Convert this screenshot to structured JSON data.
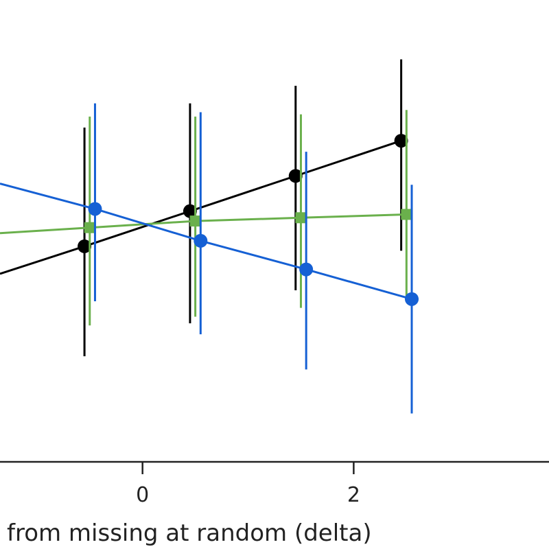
{
  "chart_data": {
    "type": "scatter",
    "title": "",
    "xlabel": "from missing at random (delta)",
    "ylabel": "",
    "xlim": [
      -1.35,
      3.85
    ],
    "ylim": [
      -1.05,
      1.05
    ],
    "x_ticks": [
      0,
      2
    ],
    "x_tick_labels": [
      "0",
      "2"
    ],
    "grid": false,
    "legend": "none",
    "series": [
      {
        "color": "#000000",
        "marker": "circle",
        "x": [
          -0.55,
          0.45,
          1.45,
          2.45
        ],
        "y": [
          -0.07,
          0.09,
          0.25,
          0.41
        ],
        "err_low": [
          -0.57,
          -0.42,
          -0.27,
          -0.09
        ],
        "err_high": [
          0.47,
          0.58,
          0.66,
          0.78
        ],
        "line_x_start": -1.35,
        "line_y_start": -0.195
      },
      {
        "color": "#6ab04c",
        "marker": "square",
        "x": [
          -0.5,
          0.5,
          1.5,
          2.5
        ],
        "y": [
          0.015,
          0.045,
          0.06,
          0.075
        ],
        "err_low": [
          -0.43,
          -0.39,
          -0.35,
          -0.32
        ],
        "err_high": [
          0.52,
          0.52,
          0.53,
          0.55
        ],
        "line_x_start": -1.35,
        "line_y_start": -0.01
      },
      {
        "color": "#1560d4",
        "marker": "circle",
        "x": [
          -0.45,
          0.55,
          1.55,
          2.55
        ],
        "y": [
          0.1,
          -0.045,
          -0.175,
          -0.31
        ],
        "err_low": [
          -0.32,
          -0.47,
          -0.63,
          -0.83
        ],
        "err_high": [
          0.58,
          0.54,
          0.36,
          0.21
        ],
        "line_x_start": -1.35,
        "line_y_start": 0.215
      }
    ]
  }
}
